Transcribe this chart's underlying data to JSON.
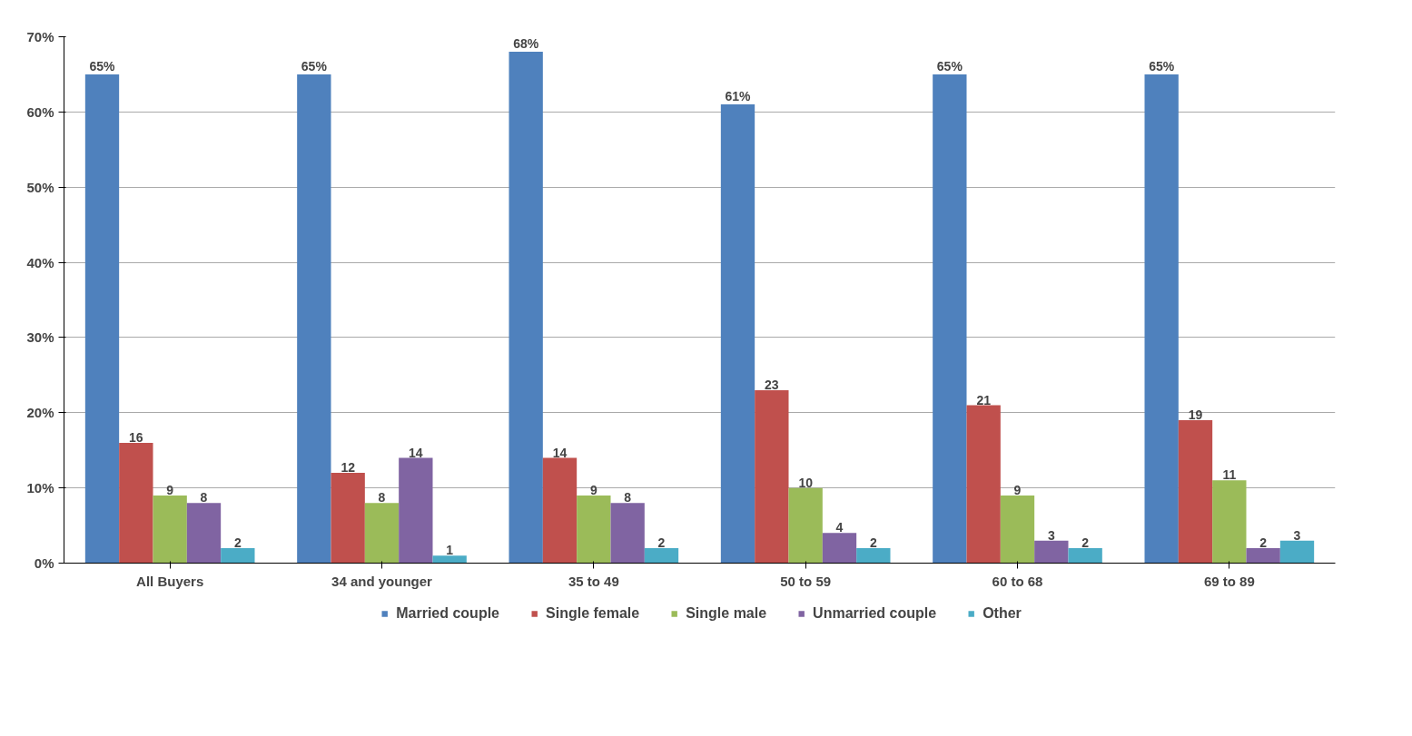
{
  "chart_data": {
    "type": "bar",
    "categories": [
      "All Buyers",
      "34 and younger",
      "35 to 49",
      "50 to 59",
      "60 to 68",
      "69 to 89"
    ],
    "series": [
      {
        "name": "Married couple",
        "color": "#4f81bd",
        "values": [
          65,
          65,
          68,
          61,
          65,
          65
        ],
        "value_labels": [
          "65%",
          "65%",
          "68%",
          "61%",
          "65%",
          "65%"
        ]
      },
      {
        "name": "Single female",
        "color": "#c0504d",
        "values": [
          16,
          12,
          14,
          23,
          21,
          19
        ],
        "value_labels": [
          "16",
          "12",
          "14",
          "23",
          "21",
          "19"
        ]
      },
      {
        "name": "Single male",
        "color": "#9bbb59",
        "values": [
          9,
          8,
          9,
          10,
          9,
          11
        ],
        "value_labels": [
          "9",
          "8",
          "9",
          "10",
          "9",
          "11"
        ]
      },
      {
        "name": "Unmarried couple",
        "color": "#8064a2",
        "values": [
          8,
          14,
          8,
          4,
          3,
          2
        ],
        "value_labels": [
          "8",
          "14",
          "8",
          "4",
          "3",
          "2"
        ]
      },
      {
        "name": "Other",
        "color": "#4bacc6",
        "values": [
          2,
          1,
          2,
          2,
          2,
          3
        ],
        "value_labels": [
          "2",
          "1",
          "2",
          "2",
          "2",
          "3"
        ]
      }
    ],
    "ylim": [
      0,
      70
    ],
    "yticks": [
      {
        "value": 0,
        "label": "0%"
      },
      {
        "value": 10,
        "label": "10%"
      },
      {
        "value": 20,
        "label": "20%"
      },
      {
        "value": 30,
        "label": "30%"
      },
      {
        "value": 40,
        "label": "40%"
      },
      {
        "value": 50,
        "label": "50%"
      },
      {
        "value": 60,
        "label": "60%"
      },
      {
        "value": 70,
        "label": "70%"
      }
    ],
    "grid": "y",
    "legend": "bottom"
  }
}
